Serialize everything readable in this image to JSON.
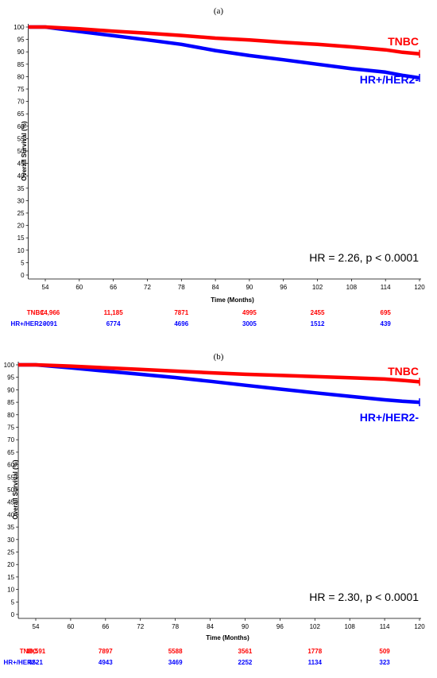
{
  "chart_data": [
    {
      "type": "line",
      "panel_label": "(a)",
      "xlabel": "Time (Months)",
      "ylabel": "Overall Survival (%)",
      "xlim": [
        54,
        120
      ],
      "ylim": [
        0,
        100
      ],
      "x_ticks": [
        54,
        60,
        66,
        72,
        78,
        84,
        90,
        96,
        102,
        108,
        114,
        120
      ],
      "y_ticks": [
        0,
        5,
        10,
        15,
        20,
        25,
        30,
        35,
        40,
        45,
        50,
        55,
        60,
        65,
        70,
        75,
        80,
        85,
        90,
        95,
        100
      ],
      "annotation": "HR = 2.26, p < 0.0001",
      "series": [
        {
          "name": "TNBC",
          "color": "#ff0000",
          "x": [
            51,
            54,
            60,
            66,
            72,
            78,
            84,
            90,
            96,
            102,
            108,
            114,
            117,
            120
          ],
          "y": [
            100,
            100,
            99.3,
            98.3,
            97.5,
            96.6,
            95.5,
            94.8,
            93.8,
            93.0,
            92.0,
            90.8,
            89.8,
            89.2
          ]
        },
        {
          "name": "HR+/HER2-",
          "color": "#0000ff",
          "x": [
            51,
            54,
            60,
            66,
            72,
            78,
            84,
            90,
            96,
            102,
            108,
            114,
            117,
            120
          ],
          "y": [
            100,
            100,
            98.2,
            96.5,
            94.8,
            93.0,
            90.5,
            88.5,
            86.8,
            85.0,
            83.2,
            81.8,
            80.5,
            79.5
          ]
        }
      ],
      "risk_table": {
        "rows": [
          {
            "label": "TNBC",
            "color": "#ff0000",
            "values": [
              "14,966",
              "11,185",
              "7871",
              "4995",
              "2455",
              "695"
            ]
          },
          {
            "label": "HR+/HER2-",
            "color": "#0000ff",
            "values": [
              "9091",
              "6774",
              "4696",
              "3005",
              "1512",
              "439"
            ]
          }
        ],
        "at_x": [
          54,
          66,
          78,
          90,
          102,
          114
        ]
      }
    },
    {
      "type": "line",
      "panel_label": "(b)",
      "xlabel": "Time (Months)",
      "ylabel": "Overall Survival (%)",
      "xlim": [
        54,
        120
      ],
      "ylim": [
        0,
        100
      ],
      "x_ticks": [
        54,
        60,
        66,
        72,
        78,
        84,
        90,
        96,
        102,
        108,
        114,
        120
      ],
      "y_ticks": [
        0,
        5,
        10,
        15,
        20,
        25,
        30,
        35,
        40,
        45,
        50,
        55,
        60,
        65,
        70,
        75,
        80,
        85,
        90,
        95,
        100
      ],
      "annotation": "HR = 2.30, p < 0.0001",
      "series": [
        {
          "name": "TNBC",
          "color": "#ff0000",
          "x": [
            51,
            54,
            60,
            66,
            72,
            78,
            84,
            90,
            96,
            102,
            108,
            114,
            117,
            120
          ],
          "y": [
            100,
            100,
            99.5,
            98.8,
            98.2,
            97.5,
            96.8,
            96.2,
            95.8,
            95.3,
            94.8,
            94.3,
            93.8,
            93.2
          ]
        },
        {
          "name": "HR+/HER2-",
          "color": "#0000ff",
          "x": [
            51,
            54,
            60,
            66,
            72,
            78,
            84,
            90,
            96,
            102,
            108,
            114,
            117,
            120
          ],
          "y": [
            100,
            100,
            98.8,
            97.5,
            96.2,
            94.9,
            93.4,
            91.8,
            90.3,
            88.8,
            87.4,
            86.0,
            85.4,
            85.0
          ]
        }
      ],
      "risk_table": {
        "rows": [
          {
            "label": "TNBC",
            "color": "#ff0000",
            "values": [
              "10,591",
              "7897",
              "5588",
              "3561",
              "1778",
              "509"
            ]
          },
          {
            "label": "HR+/HER2-",
            "color": "#0000ff",
            "values": [
              "6521",
              "4943",
              "3469",
              "2252",
              "1134",
              "323"
            ]
          }
        ],
        "at_x": [
          54,
          66,
          78,
          90,
          102,
          114
        ]
      }
    }
  ]
}
